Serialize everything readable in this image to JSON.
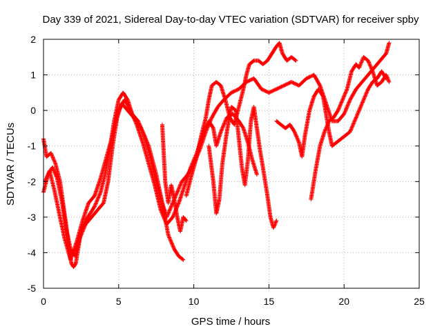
{
  "chart_data": {
    "type": "scatter",
    "title": "Day 339 of 2021, Sidereal Day-to-day VTEC variation (SDTVAR) for receiver spby",
    "xlabel": "GPS time / hours",
    "ylabel": "SDTVAR / TECUs",
    "xlim": [
      0,
      25
    ],
    "ylim": [
      -5,
      2
    ],
    "xticks": [
      "0",
      "5",
      "10",
      "15",
      "20",
      "25"
    ],
    "yticks": [
      "-5",
      "-4",
      "-3",
      "-2",
      "-1",
      "0",
      "1",
      "2"
    ],
    "grid": true,
    "marker": "+",
    "series_color": "#ff0000",
    "series": [
      {
        "segments": [
          [
            [
              0.0,
              -0.8
            ],
            [
              0.2,
              -1.3
            ],
            [
              0.5,
              -1.2
            ],
            [
              0.8,
              -1.5
            ],
            [
              1.1,
              -2.0
            ],
            [
              1.3,
              -2.6
            ],
            [
              1.5,
              -3.2
            ],
            [
              1.7,
              -3.9
            ],
            [
              1.85,
              -4.3
            ],
            [
              2.0,
              -4.4
            ],
            [
              2.15,
              -4.3
            ],
            [
              2.3,
              -3.9
            ],
            [
              2.5,
              -3.4
            ],
            [
              2.8,
              -3.1
            ],
            [
              3.1,
              -2.9
            ],
            [
              3.4,
              -2.7
            ],
            [
              3.8,
              -2.3
            ],
            [
              4.1,
              -1.8
            ],
            [
              4.4,
              -1.1
            ],
            [
              4.7,
              -0.3
            ],
            [
              5.0,
              0.3
            ],
            [
              5.3,
              0.5
            ],
            [
              5.6,
              0.3
            ],
            [
              5.9,
              -0.1
            ],
            [
              6.3,
              -0.3
            ],
            [
              6.7,
              -0.7
            ],
            [
              7.1,
              -1.3
            ],
            [
              7.5,
              -2.0
            ],
            [
              7.9,
              -2.6
            ],
            [
              8.2,
              -3.0
            ],
            [
              8.5,
              -2.7
            ],
            [
              8.8,
              -2.4
            ],
            [
              9.2,
              -2.0
            ],
            [
              9.6,
              -1.8
            ],
            [
              10.0,
              -1.5
            ],
            [
              10.4,
              -1.1
            ],
            [
              10.8,
              -0.6
            ],
            [
              11.2,
              -0.2
            ],
            [
              11.6,
              0.1
            ],
            [
              12.0,
              0.3
            ],
            [
              12.5,
              0.5
            ],
            [
              13.0,
              0.6
            ],
            [
              13.5,
              0.8
            ],
            [
              14.0,
              0.9
            ],
            [
              14.5,
              0.6
            ],
            [
              15.0,
              0.5
            ],
            [
              15.5,
              0.6
            ],
            [
              16.0,
              0.7
            ],
            [
              16.5,
              0.8
            ],
            [
              17.0,
              0.7
            ],
            [
              17.5,
              0.9
            ],
            [
              18.0,
              1.0
            ],
            [
              18.4,
              0.7
            ],
            [
              18.8,
              0.2
            ],
            [
              19.2,
              -0.3
            ],
            [
              19.6,
              -0.3
            ],
            [
              20.0,
              -0.1
            ],
            [
              20.4,
              0.3
            ],
            [
              20.8,
              0.6
            ],
            [
              21.2,
              0.8
            ],
            [
              21.6,
              1.0
            ],
            [
              22.0,
              1.2
            ],
            [
              22.4,
              1.4
            ],
            [
              22.8,
              1.6
            ],
            [
              23.0,
              1.9
            ]
          ],
          [
            [
              0.0,
              -2.3
            ],
            [
              0.3,
              -1.8
            ],
            [
              0.6,
              -1.6
            ],
            [
              0.9,
              -1.9
            ],
            [
              1.2,
              -2.5
            ],
            [
              1.5,
              -3.3
            ],
            [
              1.8,
              -3.9
            ],
            [
              2.1,
              -4.1
            ],
            [
              2.4,
              -3.6
            ],
            [
              2.8,
              -3.2
            ],
            [
              3.2,
              -3.0
            ],
            [
              3.6,
              -2.8
            ],
            [
              4.0,
              -2.6
            ],
            [
              4.3,
              -2.0
            ],
            [
              4.6,
              -1.0
            ],
            [
              4.9,
              -0.2
            ],
            [
              5.2,
              0.2
            ],
            [
              5.6,
              0.0
            ],
            [
              6.0,
              -0.2
            ],
            [
              6.5,
              -0.5
            ],
            [
              7.0,
              -1.0
            ],
            [
              7.5,
              -1.8
            ],
            [
              7.9,
              -2.6
            ],
            [
              8.3,
              -3.5
            ],
            [
              8.7,
              -3.9
            ],
            [
              9.0,
              -4.1
            ],
            [
              9.3,
              -4.2
            ]
          ],
          [
            [
              0.1,
              -2.0
            ],
            [
              0.4,
              -1.7
            ],
            [
              0.7,
              -2.2
            ],
            [
              1.0,
              -2.8
            ],
            [
              1.4,
              -3.6
            ],
            [
              1.8,
              -4.2
            ],
            [
              2.2,
              -3.7
            ],
            [
              2.6,
              -3.1
            ],
            [
              3.0,
              -2.6
            ],
            [
              3.4,
              -2.4
            ],
            [
              3.8,
              -1.9
            ],
            [
              4.2,
              -1.3
            ],
            [
              4.6,
              -0.7
            ],
            [
              5.0,
              0.0
            ],
            [
              5.4,
              0.3
            ],
            [
              5.8,
              0.0
            ],
            [
              6.2,
              -0.4
            ],
            [
              6.6,
              -0.9
            ],
            [
              7.0,
              -1.5
            ],
            [
              7.4,
              -2.1
            ],
            [
              7.8,
              -2.8
            ],
            [
              8.2,
              -3.2
            ],
            [
              8.6,
              -3.0
            ],
            [
              9.0,
              -2.6
            ],
            [
              9.4,
              -2.1
            ],
            [
              9.8,
              -1.6
            ],
            [
              10.2,
              -1.2
            ],
            [
              10.6,
              -0.7
            ],
            [
              11.0,
              -0.3
            ],
            [
              11.3,
              -0.5
            ],
            [
              11.5,
              -1.0
            ],
            [
              11.8,
              -0.6
            ],
            [
              12.2,
              -0.2
            ],
            [
              12.6,
              -0.1
            ],
            [
              13.0,
              -0.3
            ],
            [
              13.3,
              -0.5
            ],
            [
              13.6,
              -0.9
            ],
            [
              13.9,
              -1.4
            ],
            [
              14.2,
              -1.8
            ]
          ],
          [
            [
              9.5,
              -2.4
            ],
            [
              9.8,
              -1.9
            ],
            [
              10.2,
              -1.3
            ],
            [
              10.5,
              -0.7
            ],
            [
              10.8,
              -0.2
            ],
            [
              11.0,
              0.3
            ],
            [
              11.2,
              0.7
            ],
            [
              11.5,
              0.8
            ],
            [
              11.8,
              0.7
            ],
            [
              12.1,
              0.3
            ],
            [
              12.4,
              -0.2
            ],
            [
              12.7,
              -0.4
            ],
            [
              13.0,
              0.1
            ],
            [
              13.3,
              0.6
            ],
            [
              13.5,
              1.0
            ],
            [
              13.7,
              1.3
            ],
            [
              14.0,
              1.4
            ],
            [
              14.3,
              1.4
            ],
            [
              14.6,
              1.3
            ],
            [
              14.9,
              1.4
            ],
            [
              15.2,
              1.6
            ],
            [
              15.5,
              1.8
            ],
            [
              15.7,
              1.9
            ],
            [
              15.9,
              1.6
            ],
            [
              16.2,
              1.4
            ],
            [
              16.5,
              1.5
            ],
            [
              16.8,
              1.4
            ]
          ],
          [
            [
              11.0,
              -1.0
            ],
            [
              11.3,
              -2.0
            ],
            [
              11.5,
              -2.9
            ],
            [
              11.7,
              -2.5
            ],
            [
              11.9,
              -1.5
            ],
            [
              12.2,
              -0.6
            ],
            [
              12.5,
              0.1
            ],
            [
              12.8,
              0.0
            ],
            [
              13.0,
              -0.8
            ],
            [
              13.2,
              -1.6
            ],
            [
              13.4,
              -2.1
            ],
            [
              13.6,
              -1.4
            ],
            [
              13.8,
              -0.3
            ],
            [
              14.0,
              0.1
            ],
            [
              14.2,
              -0.5
            ],
            [
              14.4,
              -1.1
            ],
            [
              14.6,
              -1.6
            ],
            [
              14.9,
              -2.4
            ],
            [
              15.1,
              -3.0
            ],
            [
              15.3,
              -3.3
            ],
            [
              15.5,
              -3.1
            ]
          ],
          [
            [
              15.5,
              -0.3
            ],
            [
              15.8,
              -0.4
            ],
            [
              16.1,
              -0.5
            ],
            [
              16.4,
              -0.4
            ],
            [
              16.7,
              -0.6
            ],
            [
              17.0,
              -0.9
            ],
            [
              17.2,
              -1.3
            ],
            [
              17.4,
              -0.7
            ],
            [
              17.7,
              0.0
            ],
            [
              18.0,
              0.4
            ],
            [
              18.3,
              0.6
            ],
            [
              18.6,
              0.4
            ],
            [
              18.8,
              -0.1
            ],
            [
              19.0,
              -0.6
            ],
            [
              19.2,
              -1.0
            ],
            [
              19.5,
              -0.9
            ],
            [
              19.8,
              -0.8
            ],
            [
              20.1,
              -0.7
            ],
            [
              20.4,
              -0.6
            ],
            [
              20.7,
              -0.3
            ],
            [
              21.0,
              0.0
            ],
            [
              21.3,
              0.3
            ],
            [
              21.6,
              0.6
            ],
            [
              21.9,
              0.8
            ],
            [
              22.2,
              0.9
            ],
            [
              22.5,
              1.1
            ],
            [
              22.8,
              0.9
            ]
          ],
          [
            [
              17.8,
              -2.5
            ],
            [
              18.1,
              -1.7
            ],
            [
              18.4,
              -1.0
            ],
            [
              18.7,
              -0.6
            ],
            [
              19.0,
              -0.3
            ],
            [
              19.3,
              -0.2
            ],
            [
              19.6,
              0.0
            ],
            [
              19.9,
              0.3
            ],
            [
              20.2,
              0.6
            ],
            [
              20.5,
              1.1
            ],
            [
              20.8,
              1.3
            ],
            [
              21.0,
              1.2
            ],
            [
              21.3,
              1.5
            ],
            [
              21.6,
              1.4
            ],
            [
              21.9,
              1.1
            ],
            [
              22.2,
              0.7
            ],
            [
              22.5,
              0.8
            ],
            [
              22.8,
              1.0
            ],
            [
              23.0,
              0.8
            ]
          ],
          [
            [
              7.9,
              -0.4
            ],
            [
              8.0,
              -1.2
            ],
            [
              8.1,
              -2.0
            ],
            [
              8.3,
              -2.6
            ],
            [
              8.5,
              -2.1
            ],
            [
              8.7,
              -2.5
            ],
            [
              8.9,
              -3.0
            ],
            [
              9.1,
              -3.4
            ],
            [
              9.3,
              -3.0
            ],
            [
              9.5,
              -3.1
            ]
          ]
        ]
      }
    ]
  }
}
